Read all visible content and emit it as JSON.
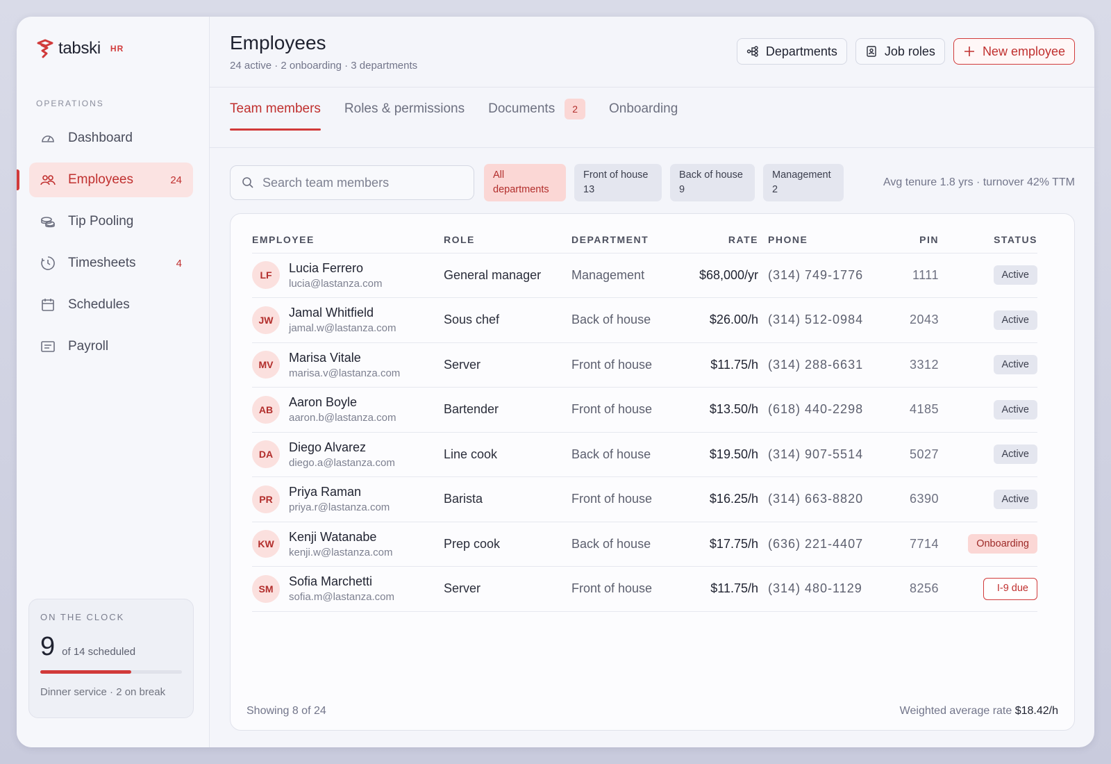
{
  "brand": {
    "name": "tabski",
    "tag": "HR",
    "color": "#d13a3a"
  },
  "sidebar": {
    "section_label": "OPERATIONS",
    "items": [
      {
        "label": "Dashboard",
        "count": "",
        "icon": "gauge-icon"
      },
      {
        "label": "Employees",
        "count": "24",
        "icon": "users-icon",
        "active": true
      },
      {
        "label": "Tip Pooling",
        "count": "",
        "icon": "coins-icon"
      },
      {
        "label": "Timesheets",
        "count": "4",
        "icon": "clock-icon"
      },
      {
        "label": "Schedules",
        "count": "",
        "icon": "calendar-icon"
      },
      {
        "label": "Payroll",
        "count": "",
        "icon": "receipt-icon"
      }
    ],
    "on_the_clock": {
      "title": "ON THE CLOCK",
      "count": "9",
      "scheduled": "of 14 scheduled",
      "fill_fraction": 0.643,
      "footer": "Dinner service · 2 on break"
    }
  },
  "header": {
    "title": "Employees",
    "subtitle": "24 active · 2 onboarding · 3 departments",
    "buttons": {
      "departments": "Departments",
      "job_roles": "Job roles",
      "new_employee": "New employee"
    }
  },
  "tabs": [
    {
      "label": "Team members",
      "active": true
    },
    {
      "label": "Roles & permissions"
    },
    {
      "label": "Documents",
      "badge": "2"
    },
    {
      "label": "Onboarding"
    }
  ],
  "toolbar": {
    "search_placeholder": "Search team members",
    "chips": [
      {
        "label": "All departments",
        "active": true
      },
      {
        "label": "Front of house 13"
      },
      {
        "label": "Back of house 9"
      },
      {
        "label": "Management 2"
      }
    ],
    "stats": "Avg tenure 1.8 yrs · turnover 42% TTM"
  },
  "table": {
    "headers": [
      "EMPLOYEE",
      "ROLE",
      "DEPARTMENT",
      "RATE",
      "PHONE",
      "PIN",
      "STATUS"
    ],
    "rows": [
      {
        "initials": "LF",
        "name": "Lucia Ferrero",
        "email": "lucia@lastanza.com",
        "role": "General manager",
        "department": "Management",
        "rate": "$68,000/yr",
        "phone": "(314) 749-1776",
        "pin": "1111",
        "status": "Active",
        "status_type": "active"
      },
      {
        "initials": "JW",
        "name": "Jamal Whitfield",
        "email": "jamal.w@lastanza.com",
        "role": "Sous chef",
        "department": "Back of house",
        "rate": "$26.00/h",
        "phone": "(314) 512-0984",
        "pin": "2043",
        "status": "Active",
        "status_type": "active"
      },
      {
        "initials": "MV",
        "name": "Marisa Vitale",
        "email": "marisa.v@lastanza.com",
        "role": "Server",
        "department": "Front of house",
        "rate": "$11.75/h",
        "phone": "(314) 288-6631",
        "pin": "3312",
        "status": "Active",
        "status_type": "active"
      },
      {
        "initials": "AB",
        "name": "Aaron Boyle",
        "email": "aaron.b@lastanza.com",
        "role": "Bartender",
        "department": "Front of house",
        "rate": "$13.50/h",
        "phone": "(618) 440-2298",
        "pin": "4185",
        "status": "Active",
        "status_type": "active"
      },
      {
        "initials": "DA",
        "name": "Diego Alvarez",
        "email": "diego.a@lastanza.com",
        "role": "Line cook",
        "department": "Back of house",
        "rate": "$19.50/h",
        "phone": "(314) 907-5514",
        "pin": "5027",
        "status": "Active",
        "status_type": "active"
      },
      {
        "initials": "PR",
        "name": "Priya Raman",
        "email": "priya.r@lastanza.com",
        "role": "Barista",
        "department": "Front of house",
        "rate": "$16.25/h",
        "phone": "(314) 663-8820",
        "pin": "6390",
        "status": "Active",
        "status_type": "active"
      },
      {
        "initials": "KW",
        "name": "Kenji Watanabe",
        "email": "kenji.w@lastanza.com",
        "role": "Prep cook",
        "department": "Back of house",
        "rate": "$17.75/h",
        "phone": "(636) 221-4407",
        "pin": "7714",
        "status": "Onboarding",
        "status_type": "onboarding"
      },
      {
        "initials": "SM",
        "name": "Sofia Marchetti",
        "email": "sofia.m@lastanza.com",
        "role": "Server",
        "department": "Front of house",
        "rate": "$11.75/h",
        "phone": "(314) 480-1129",
        "pin": "8256",
        "status": "I-9 due",
        "status_type": "due"
      }
    ]
  },
  "footer": {
    "showing": "Showing 8 of 24",
    "weighted_label": "Weighted average rate",
    "weighted_value": "$18.42/h"
  }
}
